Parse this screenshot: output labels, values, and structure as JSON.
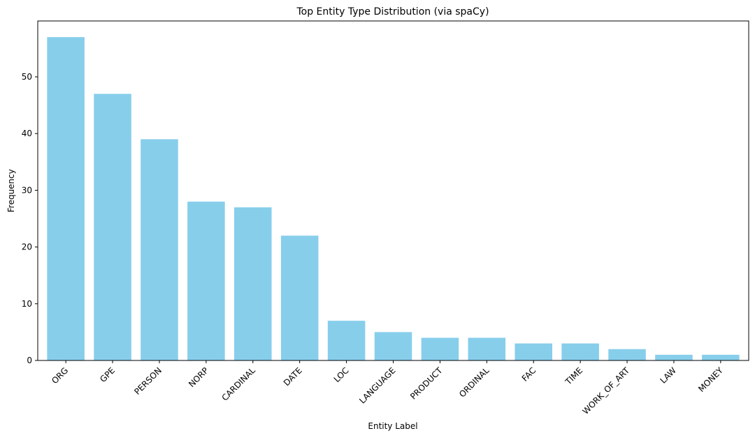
{
  "chart_data": {
    "type": "bar",
    "title": "Top Entity Type Distribution (via spaCy)",
    "xlabel": "Entity Label",
    "ylabel": "Frequency",
    "categories": [
      "ORG",
      "GPE",
      "PERSON",
      "NORP",
      "CARDINAL",
      "DATE",
      "LOC",
      "LANGUAGE",
      "PRODUCT",
      "ORDINAL",
      "FAC",
      "TIME",
      "WORK_OF_ART",
      "LAW",
      "MONEY"
    ],
    "values": [
      57,
      47,
      39,
      28,
      27,
      22,
      7,
      5,
      4,
      4,
      3,
      3,
      2,
      1,
      1
    ],
    "ylim": [
      0,
      59.85
    ],
    "yticks": [
      0,
      10,
      20,
      30,
      40,
      50
    ],
    "bar_color": "#87ceeb",
    "grid": false,
    "legend": "none",
    "x_tick_rotation": 45
  }
}
